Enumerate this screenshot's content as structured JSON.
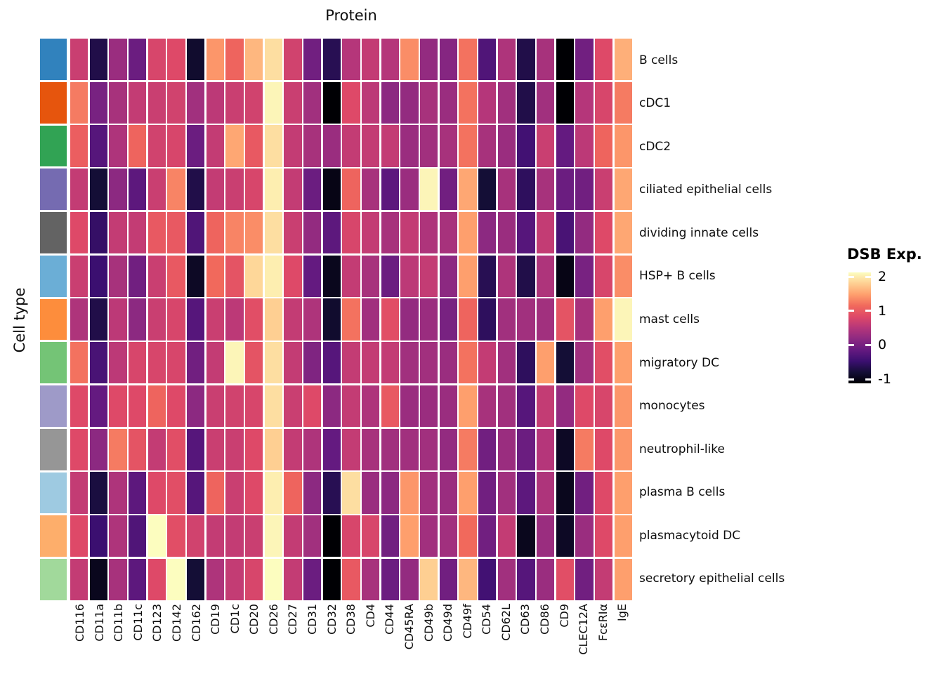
{
  "figure": {
    "title": "Protein",
    "y_axis_title": "Cell type"
  },
  "chart_data": {
    "type": "heatmap",
    "title": "Protein",
    "xlabel": "Protein",
    "ylabel": "Cell type",
    "grid": "white gridlines between tiles",
    "legend_position": "right",
    "columns": [
      "CD116",
      "CD11a",
      "CD11b",
      "CD11c",
      "CD123",
      "CD142",
      "CD162",
      "CD19",
      "CD1c",
      "CD20",
      "CD26",
      "CD27",
      "CD31",
      "CD32",
      "CD38",
      "CD4",
      "CD44",
      "CD45RA",
      "CD49b",
      "CD49d",
      "CD49f",
      "CD54",
      "CD62L",
      "CD63",
      "CD86",
      "CD9",
      "CLEC12A",
      "FcεRIα",
      "IgE"
    ],
    "rows": [
      "B cells",
      "cDC1",
      "cDC2",
      "ciliated epithelial cells",
      "dividing innate cells",
      "HSP+ B cells",
      "mast cells",
      "migratory DC",
      "monocytes",
      "neutrophil-like",
      "plasma B cells",
      "plasmacytoid DC",
      "secretory epithelial cells"
    ],
    "row_annotation_colors": [
      "#3182bd",
      "#e6550d",
      "#31a354",
      "#756bb1",
      "#636363",
      "#6baed6",
      "#fd8d3c",
      "#74c476",
      "#9e9ac8",
      "#969696",
      "#9ecae1",
      "#fdae6b",
      "#a1d99b"
    ],
    "legend": {
      "title": "DSB Exp.",
      "ticks": [
        2,
        1,
        0,
        -1
      ],
      "vmin": -1,
      "vmax": 2
    },
    "colormap": {
      "name": "magma",
      "stops": [
        [
          0,
          "#000004"
        ],
        [
          0.1,
          "#140e36"
        ],
        [
          0.2,
          "#3b0f70"
        ],
        [
          0.3,
          "#641a80"
        ],
        [
          0.4,
          "#8c2981"
        ],
        [
          0.5,
          "#b5367a"
        ],
        [
          0.6,
          "#de4968"
        ],
        [
          0.7,
          "#f1695c"
        ],
        [
          0.8,
          "#fe9f6d"
        ],
        [
          0.9,
          "#fecf92"
        ],
        [
          1,
          "#fcfdbf"
        ]
      ]
    },
    "values": [
      [
        0.65,
        -0.6,
        0.3,
        -0.05,
        0.75,
        0.8,
        -0.75,
        1.35,
        1.05,
        1.55,
        1.8,
        0.7,
        0,
        -0.55,
        0.5,
        0.6,
        0.5,
        1.3,
        0.25,
        0.15,
        1.15,
        -0.25,
        0.45,
        -0.6,
        0.4,
        -1,
        0,
        0.8,
        1.5
      ],
      [
        1.2,
        0.05,
        0.4,
        0.6,
        0.65,
        0.7,
        0.35,
        0.55,
        0.65,
        0.7,
        1.95,
        0.65,
        0.35,
        -1,
        0.8,
        0.55,
        0.2,
        0.25,
        0.4,
        0.3,
        1.15,
        0.5,
        0.35,
        -0.6,
        0.35,
        -1,
        0.5,
        0.75,
        1.2
      ],
      [
        1,
        -0.2,
        0.45,
        1.05,
        0.7,
        0.75,
        -0.05,
        0.6,
        1.45,
        0.95,
        1.8,
        0.6,
        0.4,
        0.3,
        0.6,
        0.6,
        0.6,
        0.3,
        0.35,
        0.4,
        1.15,
        0.4,
        0.3,
        -0.35,
        0.65,
        -0.1,
        0.55,
        1.05,
        1.35
      ],
      [
        0.6,
        -0.7,
        0.2,
        -0.15,
        0.65,
        1.25,
        -0.6,
        0.6,
        0.65,
        0.75,
        1.9,
        0.6,
        -0.05,
        -0.9,
        1.05,
        0.4,
        -0.15,
        0.3,
        1.95,
        0,
        1.45,
        -0.7,
        0.4,
        -0.5,
        0.4,
        -0.05,
        0,
        0.65,
        1.45
      ],
      [
        0.8,
        -0.45,
        0.6,
        0.6,
        0.95,
        0.95,
        -0.25,
        1.05,
        1.25,
        1.3,
        1.8,
        0.65,
        0.25,
        -0.15,
        0.75,
        0.6,
        0.4,
        0.6,
        0.45,
        0.4,
        1.4,
        0.2,
        0.3,
        -0.2,
        0.6,
        -0.3,
        0.25,
        0.8,
        1.45
      ],
      [
        0.65,
        -0.4,
        0.4,
        0,
        0.65,
        0.95,
        -0.8,
        1.1,
        0.9,
        1.75,
        1.9,
        0.8,
        -0.1,
        -0.85,
        0.6,
        0.4,
        -0.05,
        0.55,
        0.6,
        0.2,
        1.4,
        -0.55,
        0.45,
        -0.6,
        0.45,
        -0.9,
        0.05,
        0.75,
        1.3
      ],
      [
        0.45,
        -0.6,
        0.55,
        0.2,
        0.65,
        0.75,
        -0.2,
        0.65,
        0.55,
        0.85,
        1.7,
        0.6,
        0.45,
        -0.75,
        1.15,
        0.35,
        0.85,
        0.25,
        0.3,
        0.05,
        1.05,
        -0.5,
        0.35,
        0.35,
        0.35,
        0.9,
        0.4,
        1.4,
        1.95
      ],
      [
        1.15,
        -0.3,
        0.55,
        0.75,
        0.75,
        0.75,
        0,
        0.6,
        1.95,
        0.9,
        1.8,
        0.6,
        0.1,
        -0.2,
        0.6,
        0.6,
        0.6,
        0.35,
        0.35,
        0.3,
        1.15,
        0.6,
        0.35,
        -0.5,
        1.4,
        -0.7,
        0.35,
        0.85,
        1.4
      ],
      [
        0.8,
        -0.1,
        0.8,
        0.8,
        1.05,
        0.8,
        0.2,
        0.65,
        0.7,
        0.75,
        1.8,
        0.65,
        0.8,
        0.2,
        0.6,
        0.45,
        0.95,
        0.3,
        0.3,
        0.3,
        1.4,
        0.4,
        0.35,
        -0.2,
        0.6,
        0.25,
        0.8,
        0.75,
        1.35
      ],
      [
        0.8,
        0.2,
        1.2,
        0.9,
        0.6,
        0.85,
        -0.2,
        0.65,
        0.65,
        0.8,
        1.7,
        0.6,
        0.45,
        -0.1,
        0.6,
        0.4,
        0.35,
        0.35,
        0.35,
        0.25,
        1.2,
        0,
        0.3,
        -0.05,
        0.5,
        -0.8,
        1.2,
        0.8,
        1.35
      ],
      [
        0.6,
        -0.65,
        0.45,
        -0.15,
        0.8,
        0.85,
        -0.2,
        1.05,
        0.65,
        0.8,
        1.9,
        1.05,
        0.2,
        -0.55,
        1.8,
        0.3,
        0.2,
        1.35,
        0.35,
        0.3,
        1.4,
        0,
        0.35,
        -0.15,
        0.45,
        -0.85,
        0,
        0.8,
        1.4
      ],
      [
        0.8,
        -0.4,
        0.45,
        -0.25,
        2,
        0.85,
        0.7,
        0.6,
        0.6,
        0.65,
        1.95,
        0.6,
        0.35,
        -1,
        0.75,
        0.75,
        0,
        1.4,
        0.35,
        0.35,
        1.1,
        0,
        0.6,
        -0.85,
        0.3,
        -0.8,
        0.3,
        0.8,
        1.4
      ],
      [
        0.6,
        -0.85,
        0.4,
        -0.15,
        0.8,
        2,
        -0.7,
        0.45,
        0.6,
        0.75,
        2,
        0.6,
        -0.05,
        -1,
        0.95,
        0.4,
        -0.05,
        0.25,
        1.7,
        0,
        1.55,
        -0.35,
        0.35,
        -0.2,
        0.3,
        0.85,
        0,
        0.6,
        1.4
      ]
    ]
  }
}
